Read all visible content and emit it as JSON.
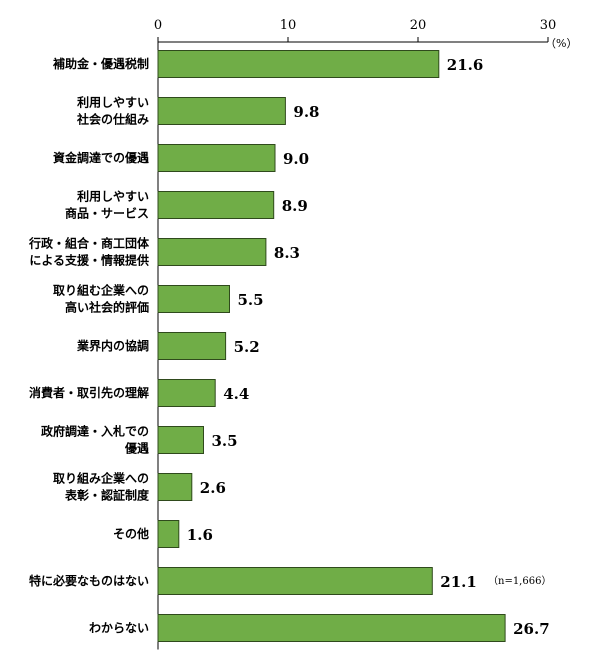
{
  "chart_data": {
    "type": "bar",
    "orientation": "horizontal",
    "categories": [
      "補助金・優遇税制",
      "利用しやすい\n社会の仕組み",
      "資金調達での優遇",
      "利用しやすい\n商品・サービス",
      "行政・組合・商工団体\nによる支援・情報提供",
      "取り組む企業への\n高い社会的評価",
      "業界内の協調",
      "消費者・取引先の理解",
      "政府調達・入札での\n優遇",
      "取り組み企業への\n表彰・認証制度",
      "その他",
      "特に必要なものはない",
      "わからない"
    ],
    "values": [
      21.6,
      9.8,
      9.0,
      8.9,
      8.3,
      5.5,
      5.2,
      4.4,
      3.5,
      2.6,
      1.6,
      21.1,
      26.7
    ],
    "value_labels": [
      "21.6",
      "9.8",
      "9.0",
      "8.9",
      "8.3",
      "5.5",
      "5.2",
      "4.4",
      "3.5",
      "2.6",
      "1.6",
      "21.1",
      "26.7"
    ],
    "xticks": [
      0,
      10,
      20,
      30
    ],
    "xlim": [
      0,
      30
    ],
    "unit": "（%）",
    "note": "（n=1,666）",
    "bar_color": "#70ad47",
    "bar_border": "#2f4a1c",
    "grid": false,
    "title": "",
    "xlabel": "",
    "ylabel": ""
  }
}
